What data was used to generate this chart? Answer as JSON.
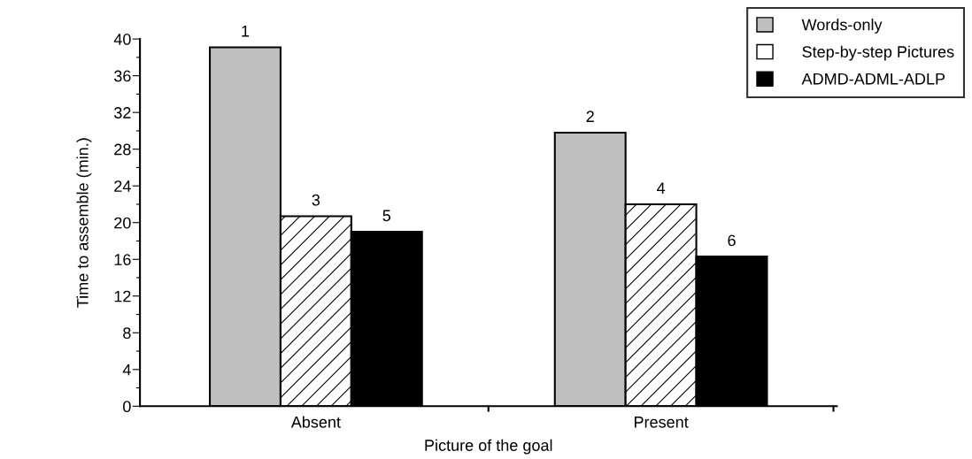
{
  "chart_data": {
    "type": "bar",
    "xlabel": "Picture of the goal",
    "ylabel": "Time to assemble (min.)",
    "categories": [
      "Absent",
      "Present"
    ],
    "series": [
      {
        "name": "Words-only",
        "color": "#c0c0c0",
        "values": [
          39.1,
          29.8
        ]
      },
      {
        "name": "Step-by-step Pictures",
        "color": "#ffffff",
        "values": [
          20.7,
          22.0
        ]
      },
      {
        "name": "ADMD-ADML-ADLP",
        "color": "#000000",
        "values": [
          19.0,
          16.3
        ]
      }
    ],
    "annotations": [
      "1",
      "2",
      "3",
      "4",
      "5",
      "6"
    ],
    "ylim": [
      0,
      40
    ],
    "yticks": [
      0,
      {
        "value": 2,
        "label": null
      },
      4,
      {
        "value": 6,
        "label": null
      },
      8,
      {
        "value": 10,
        "label": null
      },
      12,
      {
        "value": 14,
        "label": null
      },
      16,
      {
        "value": 18,
        "label": null
      },
      20,
      {
        "value": 22,
        "label": null
      },
      24,
      {
        "value": 26,
        "label": null
      },
      28,
      {
        "value": 30,
        "label": null
      },
      32,
      {
        "value": 34,
        "label": null
      },
      36,
      {
        "value": 38,
        "label": null
      },
      40
    ],
    "grid": false,
    "legend": "top right"
  }
}
